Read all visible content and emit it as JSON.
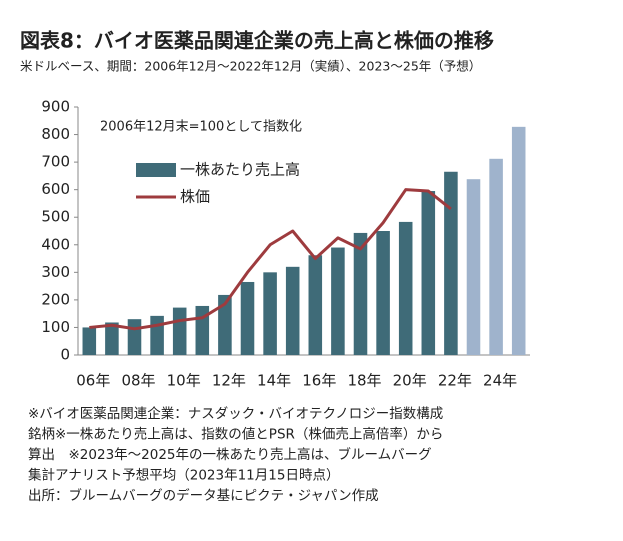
{
  "chart_data": {
    "type": "bar_line",
    "title": "図表8：バイオ医薬品関連企業の売上高と株価の推移",
    "subtitle": "米ドルベース、期間：2006年12月～2022年12月（実績）、2023～25年（予想）",
    "annotation": "2006年12月末=100として指数化",
    "categories": [
      "06年",
      null,
      "08年",
      null,
      "10年",
      null,
      "12年",
      null,
      "14年",
      null,
      "16年",
      null,
      "18年",
      null,
      "20年",
      null,
      "22年",
      null,
      "24年",
      null
    ],
    "series": [
      {
        "name": "一株あたり売上高",
        "type": "bar",
        "color": "#3f6b78",
        "colors": [
          "#3f6b78",
          "#3f6b78",
          "#3f6b78",
          "#3f6b78",
          "#3f6b78",
          "#3f6b78",
          "#3f6b78",
          "#3f6b78",
          "#3f6b78",
          "#3f6b78",
          "#3f6b78",
          "#3f6b78",
          "#3f6b78",
          "#3f6b78",
          "#3f6b78",
          "#3f6b78",
          "#3f6b78",
          "#9fb3cc",
          "#9fb3cc",
          "#9fb3cc"
        ],
        "values": [
          100,
          118,
          130,
          142,
          172,
          178,
          218,
          265,
          300,
          320,
          362,
          390,
          443,
          450,
          483,
          595,
          665,
          638,
          712,
          828
        ]
      },
      {
        "name": "株価",
        "type": "line",
        "color": "#9e3b3e",
        "values": [
          100,
          108,
          95,
          108,
          125,
          135,
          185,
          300,
          400,
          450,
          350,
          425,
          385,
          480,
          600,
          595,
          530,
          null,
          null,
          null
        ]
      }
    ],
    "ylim": [
      0,
      900
    ],
    "yticks": [
      0,
      100,
      200,
      300,
      400,
      500,
      600,
      700,
      800,
      900
    ],
    "grid": false,
    "notes": [
      "※バイオ医薬品関連企業：ナスダック・バイオテクノロジー指数構成",
      "銘柄※一株あたり売上高は、指数の値とPSR（株価売上高倍率）から",
      "算出　※2023年～2025年の一株あたり売上高は、ブルームバーグ",
      "集計アナリスト予想平均（2023年11月15日時点）",
      "出所：ブルームバーグのデータ基にピクテ・ジャパン作成"
    ]
  }
}
